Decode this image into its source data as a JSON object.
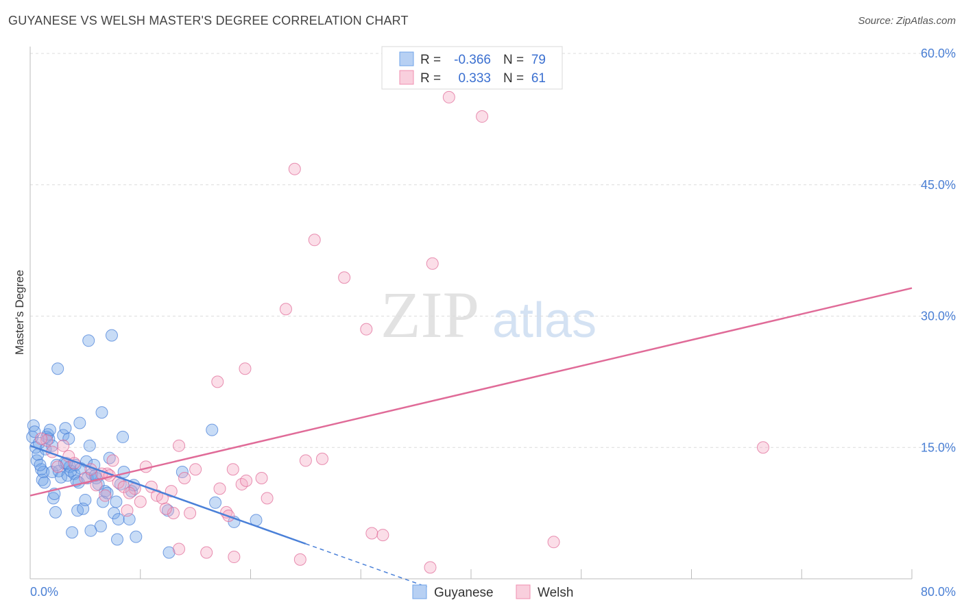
{
  "header": {
    "title": "GUYANESE VS WELSH MASTER'S DEGREE CORRELATION CHART",
    "source": "Source: ZipAtlas.com"
  },
  "watermark": {
    "zip": "ZIP",
    "atlas": "atlas"
  },
  "legend": {
    "rows": [
      {
        "r_label": "R =",
        "r_value": "-0.366",
        "n_label": "N =",
        "n_value": "79",
        "color": "#6fa3e8"
      },
      {
        "r_label": "R =",
        "r_value": "0.333",
        "n_label": "N =",
        "n_value": "61",
        "color": "#f08fb0"
      }
    ]
  },
  "chart_data": {
    "type": "scatter",
    "title": "GUYANESE VS WELSH MASTER'S DEGREE CORRELATION CHART",
    "xlabel": "",
    "ylabel": "Master's Degree",
    "xlim": [
      0,
      80
    ],
    "ylim": [
      0,
      60
    ],
    "x_tick_labels": {
      "min": "0.0%",
      "max": "80.0%"
    },
    "y_ticks": [
      15,
      30,
      45,
      60
    ],
    "y_tick_labels": [
      "15.0%",
      "30.0%",
      "45.0%",
      "60.0%"
    ],
    "series": [
      {
        "name": "Guyanese",
        "color": "#6fa3e8",
        "stroke": "#4a80d8",
        "trend": {
          "x0": 0,
          "y0": 15.2,
          "x1": 25,
          "y1": 4.0,
          "dash_to_x": 36
        },
        "points": [
          [
            0.2,
            16.2
          ],
          [
            0.3,
            17.5
          ],
          [
            0.5,
            15.0
          ],
          [
            0.6,
            13.5
          ],
          [
            0.7,
            14.2
          ],
          [
            0.8,
            15.5
          ],
          [
            1.0,
            12.5
          ],
          [
            1.1,
            11.3
          ],
          [
            1.2,
            12.2
          ],
          [
            1.4,
            14.8
          ],
          [
            1.5,
            16.2
          ],
          [
            1.6,
            16.5
          ],
          [
            1.7,
            16.0
          ],
          [
            1.8,
            17.0
          ],
          [
            2.0,
            15.2
          ],
          [
            2.0,
            12.2
          ],
          [
            2.1,
            9.2
          ],
          [
            2.2,
            9.7
          ],
          [
            2.3,
            7.6
          ],
          [
            2.5,
            24.0
          ],
          [
            2.6,
            12.3
          ],
          [
            2.8,
            11.6
          ],
          [
            3.0,
            16.4
          ],
          [
            3.1,
            13.2
          ],
          [
            3.2,
            17.2
          ],
          [
            3.4,
            11.8
          ],
          [
            3.5,
            16.0
          ],
          [
            3.6,
            12.8
          ],
          [
            3.7,
            12.3
          ],
          [
            3.8,
            5.3
          ],
          [
            4.0,
            12.0
          ],
          [
            4.1,
            13.0
          ],
          [
            4.2,
            11.2
          ],
          [
            4.3,
            7.8
          ],
          [
            4.5,
            17.8
          ],
          [
            4.6,
            12.6
          ],
          [
            4.8,
            8.0
          ],
          [
            5.0,
            9.0
          ],
          [
            5.1,
            13.4
          ],
          [
            5.2,
            11.5
          ],
          [
            5.3,
            27.2
          ],
          [
            5.4,
            15.2
          ],
          [
            5.5,
            5.5
          ],
          [
            5.6,
            12.0
          ],
          [
            5.8,
            13.0
          ],
          [
            6.0,
            11.5
          ],
          [
            6.2,
            10.8
          ],
          [
            6.4,
            6.0
          ],
          [
            6.5,
            19.0
          ],
          [
            6.6,
            8.8
          ],
          [
            6.8,
            10.0
          ],
          [
            7.0,
            9.8
          ],
          [
            7.2,
            13.8
          ],
          [
            7.4,
            27.8
          ],
          [
            7.6,
            7.5
          ],
          [
            7.8,
            8.8
          ],
          [
            7.9,
            4.5
          ],
          [
            8.0,
            6.8
          ],
          [
            8.2,
            10.8
          ],
          [
            8.4,
            16.2
          ],
          [
            8.5,
            12.2
          ],
          [
            9.0,
            6.8
          ],
          [
            9.2,
            10.0
          ],
          [
            9.4,
            10.7
          ],
          [
            9.6,
            4.8
          ],
          [
            12.5,
            7.8
          ],
          [
            12.6,
            3.0
          ],
          [
            13.8,
            12.2
          ],
          [
            16.5,
            17.0
          ],
          [
            16.8,
            8.7
          ],
          [
            18.5,
            6.5
          ],
          [
            20.5,
            6.7
          ],
          [
            0.4,
            16.8
          ],
          [
            0.9,
            13.0
          ],
          [
            1.3,
            11.0
          ],
          [
            2.4,
            13.0
          ],
          [
            3.3,
            13.2
          ],
          [
            4.4,
            11.0
          ],
          [
            5.9,
            11.8
          ]
        ]
      },
      {
        "name": "Welsh",
        "color": "#f4a8c3",
        "stroke": "#e06b98",
        "trend": {
          "x0": 0,
          "y0": 9.5,
          "x1": 80,
          "y1": 33.2
        },
        "points": [
          [
            38.0,
            55.0
          ],
          [
            41.0,
            52.8
          ],
          [
            24.0,
            46.8
          ],
          [
            25.8,
            38.7
          ],
          [
            36.5,
            36.0
          ],
          [
            28.5,
            34.4
          ],
          [
            23.2,
            30.8
          ],
          [
            30.5,
            28.5
          ],
          [
            19.5,
            24.0
          ],
          [
            17.0,
            22.5
          ],
          [
            66.5,
            15.0
          ],
          [
            13.5,
            15.2
          ],
          [
            26.5,
            13.7
          ],
          [
            25.0,
            13.5
          ],
          [
            7.5,
            13.5
          ],
          [
            10.5,
            12.8
          ],
          [
            7.0,
            12.0
          ],
          [
            8.0,
            11.0
          ],
          [
            9.5,
            10.3
          ],
          [
            11.0,
            10.5
          ],
          [
            14.0,
            11.5
          ],
          [
            15.0,
            12.5
          ],
          [
            17.2,
            10.3
          ],
          [
            18.4,
            12.5
          ],
          [
            19.2,
            10.8
          ],
          [
            19.6,
            11.2
          ],
          [
            21.0,
            11.5
          ],
          [
            11.5,
            9.5
          ],
          [
            12.0,
            9.2
          ],
          [
            12.8,
            10.0
          ],
          [
            13.0,
            7.5
          ],
          [
            14.5,
            7.5
          ],
          [
            12.3,
            8.0
          ],
          [
            21.5,
            9.2
          ],
          [
            17.8,
            7.6
          ],
          [
            18.0,
            7.2
          ],
          [
            31.0,
            5.2
          ],
          [
            32.0,
            5.0
          ],
          [
            47.5,
            4.2
          ],
          [
            13.5,
            3.4
          ],
          [
            16.0,
            3.0
          ],
          [
            18.5,
            2.5
          ],
          [
            24.5,
            2.2
          ],
          [
            36.3,
            1.3
          ],
          [
            3.5,
            14.0
          ],
          [
            2.0,
            14.5
          ],
          [
            1.5,
            15.8
          ],
          [
            1.0,
            16.0
          ],
          [
            2.5,
            12.8
          ],
          [
            4.0,
            13.2
          ],
          [
            5.0,
            11.5
          ],
          [
            5.5,
            12.5
          ],
          [
            6.0,
            10.7
          ],
          [
            6.5,
            12.0
          ],
          [
            7.2,
            11.8
          ],
          [
            8.5,
            10.5
          ],
          [
            9.0,
            9.8
          ],
          [
            10.0,
            8.8
          ],
          [
            6.8,
            9.5
          ],
          [
            8.8,
            7.8
          ],
          [
            3.0,
            15.2
          ]
        ]
      }
    ]
  },
  "bottom_legend": [
    {
      "label": "Guyanese",
      "color": "#6fa3e8"
    },
    {
      "label": "Welsh",
      "color": "#f4a8c3"
    }
  ]
}
